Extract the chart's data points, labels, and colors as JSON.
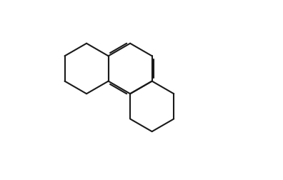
{
  "bg_color": "#ffffff",
  "line_color": "#1a1a1a",
  "figsize": [
    3.96,
    2.53
  ],
  "dpi": 100,
  "lw": 1.5
}
